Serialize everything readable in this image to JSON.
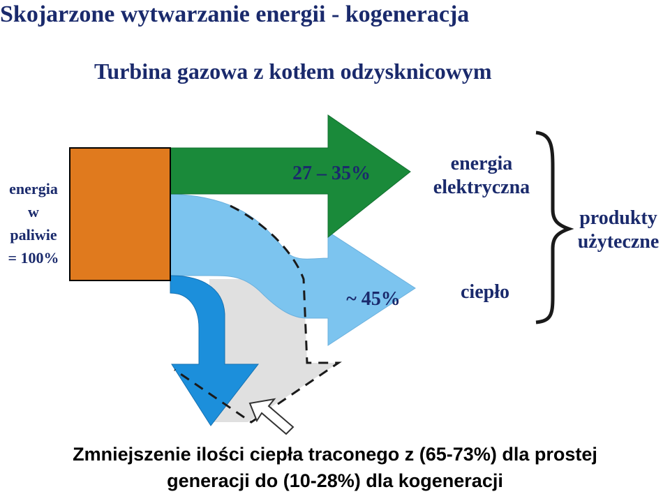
{
  "title": "Skojarzone wytwarzanie energii - kogeneracja",
  "subtitle": "Turbina gazowa z kotłem odzysknicowym",
  "input_label": [
    "energia",
    "w",
    "paliwie",
    "= 100%"
  ],
  "electric_percent": "27 – 35%",
  "heat_percent": "~ 45%",
  "electric_label": [
    "energia",
    "elektryczna"
  ],
  "heat_label": "ciepło",
  "useful_label": [
    "produkty",
    "użyteczne"
  ],
  "bottom_text": [
    "Zmniejszenie ilości ciepła traconego z (65-73%) dla prostej",
    "generacji do (10-28%) dla kogeneracji"
  ],
  "colors": {
    "fuel_block": "#e07a1e",
    "electric_arrow": "#1a8a3a",
    "heat_arrow": "#7cc4ef",
    "loss_arrow": "#1c8fdb",
    "reduced_loss_area": "#e0e0e0",
    "text": "#1a2a6c"
  }
}
